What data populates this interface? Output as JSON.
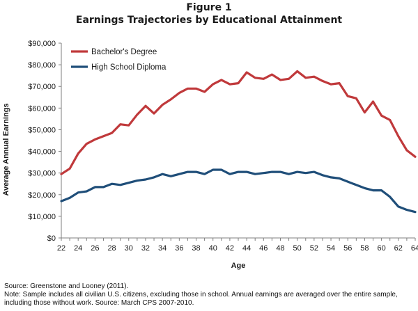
{
  "figure": {
    "label": "Figure 1",
    "title": "Earnings Trajectories by Educational Attainment"
  },
  "chart_data": {
    "type": "line",
    "xlabel": "Age",
    "ylabel": "Average Annual Earnings",
    "xlim": [
      22,
      64
    ],
    "ylim": [
      0,
      90000
    ],
    "x_ticks": [
      22,
      24,
      26,
      28,
      30,
      32,
      34,
      36,
      38,
      40,
      42,
      44,
      46,
      48,
      50,
      52,
      54,
      56,
      58,
      60,
      62,
      64
    ],
    "y_ticks": [
      0,
      10000,
      20000,
      30000,
      40000,
      50000,
      60000,
      70000,
      80000,
      90000
    ],
    "y_tick_labels": [
      "$0",
      "$10,000",
      "$20,000",
      "$30,000",
      "$40,000",
      "$50,000",
      "$60,000",
      "$70,000",
      "$80,000",
      "$90,000"
    ],
    "grid": false,
    "legend_position": "top-left",
    "x": [
      22,
      23,
      24,
      25,
      26,
      27,
      28,
      29,
      30,
      31,
      32,
      33,
      34,
      35,
      36,
      37,
      38,
      39,
      40,
      41,
      42,
      43,
      44,
      45,
      46,
      47,
      48,
      49,
      50,
      51,
      52,
      53,
      54,
      55,
      56,
      57,
      58,
      59,
      60,
      61,
      62,
      63,
      64
    ],
    "series": [
      {
        "name": "Bachelor's Degree",
        "color": "#c0393b",
        "values": [
          29500,
          32000,
          39000,
          43500,
          45500,
          47000,
          48500,
          52500,
          52000,
          57000,
          61000,
          57500,
          61500,
          64000,
          67000,
          69000,
          69000,
          67500,
          71000,
          73000,
          71000,
          71500,
          76500,
          74000,
          73500,
          75500,
          73000,
          73500,
          77000,
          74000,
          74500,
          72500,
          71000,
          71500,
          65500,
          64500,
          58000,
          63000,
          56500,
          54500,
          47000,
          40500,
          37500
        ]
      },
      {
        "name": "High School Diploma",
        "color": "#1f4e79",
        "values": [
          17000,
          18500,
          21000,
          21500,
          23500,
          23500,
          25000,
          24500,
          25500,
          26500,
          27000,
          28000,
          29500,
          28500,
          29500,
          30500,
          30500,
          29500,
          31500,
          31500,
          29500,
          30500,
          30500,
          29500,
          30000,
          30500,
          30500,
          29500,
          30500,
          30000,
          30500,
          29000,
          28000,
          27500,
          26000,
          24500,
          23000,
          22000,
          22000,
          19000,
          14500,
          13000,
          12000
        ]
      }
    ]
  },
  "notes": {
    "source": "Source: Greenstone and Looney (2011).",
    "note": "Note: Sample includes all civilian U.S. citizens, excluding those in school. Annual earnings are averaged over the entire sample, including those without work. Source: March CPS 2007-2010."
  }
}
